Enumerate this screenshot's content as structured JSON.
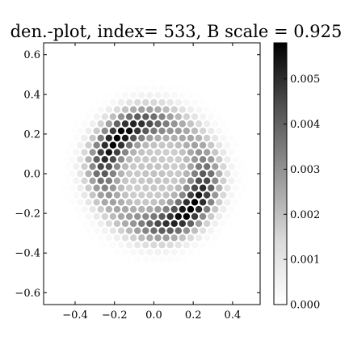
{
  "chart_data": {
    "type": "heatmap",
    "title": "den.-plot, index= 533, B scale = 0.925",
    "xlabel": "",
    "ylabel": "",
    "xlim": [
      -0.56,
      0.54
    ],
    "ylim": [
      -0.66,
      0.66
    ],
    "x_ticks": [
      -0.4,
      -0.2,
      0.0,
      0.2,
      0.4
    ],
    "x_tick_labels": [
      "−0.4",
      "−0.2",
      "0.0",
      "0.2",
      "0.4"
    ],
    "y_ticks": [
      -0.6,
      -0.4,
      -0.2,
      0.0,
      0.2,
      0.4,
      0.6
    ],
    "y_tick_labels": [
      "−0.6",
      "−0.4",
      "−0.2",
      "0.0",
      "0.2",
      "0.4",
      "0.6"
    ],
    "colorbar": {
      "min": 0.0,
      "max": 0.0058,
      "ticks": [
        0.0,
        0.001,
        0.002,
        0.003,
        0.004,
        0.005
      ],
      "tick_labels": [
        "0.000",
        "0.001",
        "0.002",
        "0.003",
        "0.004",
        "0.005"
      ],
      "colormap": "Greys"
    },
    "lattice": {
      "shape": "hexagonal",
      "spacing": 0.0415,
      "max_radius": 0.52
    },
    "density_model": {
      "description": "ring with two density lobes",
      "ring_radius": 0.26,
      "ring_width": 0.085,
      "peak": 0.0056,
      "background": 0.0016,
      "outer_falloff": 0.16,
      "lobe_strength": 0.65,
      "lobe_angle_deg": 45
    },
    "grid": false
  }
}
